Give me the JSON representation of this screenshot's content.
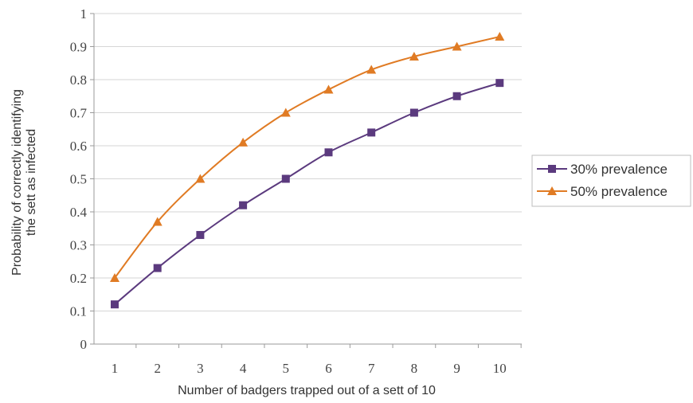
{
  "chart_data": {
    "type": "line",
    "x": [
      1,
      2,
      3,
      4,
      5,
      6,
      7,
      8,
      9,
      10
    ],
    "categories": [
      "1",
      "2",
      "3",
      "4",
      "5",
      "6",
      "7",
      "8",
      "9",
      "10"
    ],
    "series": [
      {
        "name": "30% prevalence",
        "values": [
          0.12,
          0.23,
          0.33,
          0.42,
          0.5,
          0.58,
          0.64,
          0.7,
          0.75,
          0.79
        ],
        "color": "#5b3a7e",
        "marker": "square"
      },
      {
        "name": "50% prevalence",
        "values": [
          0.2,
          0.37,
          0.5,
          0.61,
          0.7,
          0.77,
          0.83,
          0.87,
          0.9,
          0.93
        ],
        "color": "#e07b24",
        "marker": "triangle"
      }
    ],
    "yticks": [
      "0",
      "0.1",
      "0.2",
      "0.3",
      "0.4",
      "0.5",
      "0.6",
      "0.7",
      "0.8",
      "0.9",
      "1"
    ],
    "ylim": [
      0,
      1
    ],
    "xlabel": "Number of badgers trapped out of a sett of 10",
    "ylabel_line1": "Probability of correctly identifying",
    "ylabel_line2": "the sett as infected",
    "grid": true,
    "legend_position": "right"
  }
}
